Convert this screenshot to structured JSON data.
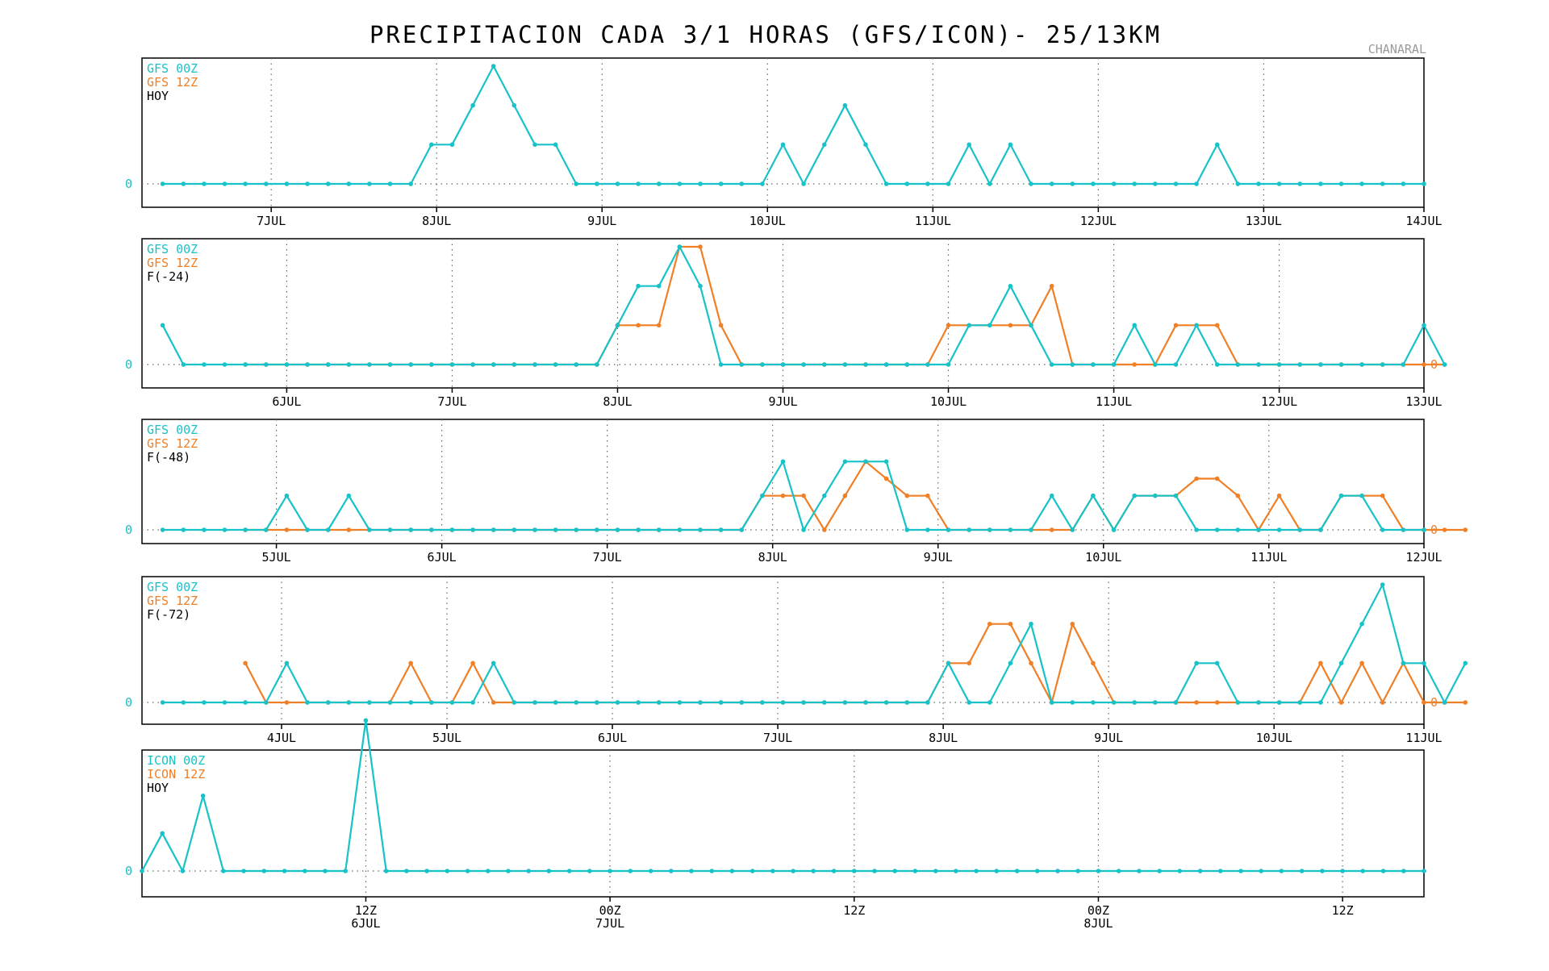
{
  "title": "PRECIPITACION CADA 3/1 HORAS (GFS/ICON)- 25/13KM",
  "location": "CHANARAL",
  "colors": {
    "series_00z": "#17c3c8",
    "series_12z": "#f07f26",
    "frame": "#000000",
    "text": "#000000"
  },
  "chart_data": [
    {
      "type": "line",
      "title": "",
      "legend": [
        "GFS 00Z",
        "GFS 12Z",
        "HOY"
      ],
      "legend_placement": "top-left",
      "x_range": [
        0,
        62
      ],
      "xticks": [
        {
          "x": 6.25,
          "label": "7JUL"
        },
        {
          "x": 14.25,
          "label": "8JUL"
        },
        {
          "x": 22.25,
          "label": "9JUL"
        },
        {
          "x": 30.25,
          "label": "10JUL"
        },
        {
          "x": 38.25,
          "label": "11JUL"
        },
        {
          "x": 46.25,
          "label": "12JUL"
        },
        {
          "x": 54.25,
          "label": "13JUL"
        },
        {
          "x": 62,
          "label": "14JUL"
        }
      ],
      "ylim": [
        0,
        3.0
      ],
      "yticks_left": [
        "0"
      ],
      "yticks_right": [],
      "series": [
        {
          "name": "GFS 00Z",
          "color": "#17c3c8",
          "x_start": 1,
          "values": [
            0,
            0,
            0,
            0,
            0,
            0,
            0,
            0,
            0,
            0,
            0,
            0,
            0,
            1,
            1,
            2,
            3,
            2,
            1,
            1,
            0,
            0,
            0,
            0,
            0,
            0,
            0,
            0,
            0,
            0,
            1,
            0,
            1,
            2,
            1,
            0,
            0,
            0,
            0,
            1,
            0,
            1,
            0,
            0,
            0,
            0,
            0,
            0,
            0,
            0,
            0,
            1,
            0,
            0,
            0,
            0,
            0,
            0,
            0,
            0,
            0,
            0
          ]
        }
      ]
    },
    {
      "type": "line",
      "title": "",
      "legend": [
        "GFS 00Z",
        "GFS 12Z",
        "F(-24)"
      ],
      "legend_placement": "top-left",
      "x_range": [
        0,
        62
      ],
      "xticks": [
        {
          "x": 7,
          "label": "6JUL"
        },
        {
          "x": 15,
          "label": "7JUL"
        },
        {
          "x": 23,
          "label": "8JUL"
        },
        {
          "x": 31,
          "label": "9JUL"
        },
        {
          "x": 39,
          "label": "10JUL"
        },
        {
          "x": 47,
          "label": "11JUL"
        },
        {
          "x": 55,
          "label": "12JUL"
        },
        {
          "x": 62,
          "label": "13JUL"
        }
      ],
      "ylim": [
        0,
        3.0
      ],
      "yticks_left": [
        "0"
      ],
      "yticks_right": [
        "0"
      ],
      "series": [
        {
          "name": "GFS 00Z",
          "color": "#17c3c8",
          "x_start": 1,
          "values": [
            1,
            0,
            0,
            0,
            0,
            0,
            0,
            0,
            0,
            0,
            0,
            0,
            0,
            0,
            0,
            0,
            0,
            0,
            0,
            0,
            0,
            0,
            1,
            2,
            2,
            3,
            2,
            0,
            0,
            0,
            0,
            0,
            0,
            0,
            0,
            0,
            0,
            0,
            0,
            1,
            1,
            2,
            1,
            0,
            0,
            0,
            0,
            1,
            0,
            0,
            1,
            0,
            0,
            0,
            0,
            0,
            0,
            0,
            0,
            0,
            0,
            1,
            0
          ]
        },
        {
          "name": "GFS 12Z",
          "color": "#f07f26",
          "x_start": 5,
          "values": [
            0,
            0,
            0,
            0,
            0,
            0,
            0,
            0,
            0,
            0,
            0,
            0,
            0,
            0,
            0,
            0,
            0,
            0,
            1,
            1,
            1,
            3,
            3,
            1,
            0,
            0,
            0,
            0,
            0,
            0,
            0,
            0,
            0,
            0,
            1,
            1,
            1,
            1,
            1,
            2,
            0,
            0,
            0,
            0,
            0,
            1,
            1,
            1,
            0,
            0,
            0,
            0,
            0,
            0,
            0,
            0,
            0,
            0,
            0
          ]
        }
      ]
    },
    {
      "type": "line",
      "title": "",
      "legend": [
        "GFS 00Z",
        "GFS 12Z",
        "F(-48)"
      ],
      "legend_placement": "top-left",
      "x_range": [
        0,
        62
      ],
      "xticks": [
        {
          "x": 6.5,
          "label": "5JUL"
        },
        {
          "x": 14.5,
          "label": "6JUL"
        },
        {
          "x": 22.5,
          "label": "7JUL"
        },
        {
          "x": 30.5,
          "label": "8JUL"
        },
        {
          "x": 38.5,
          "label": "9JUL"
        },
        {
          "x": 46.5,
          "label": "10JUL"
        },
        {
          "x": 54.5,
          "label": "11JUL"
        },
        {
          "x": 62,
          "label": "12JUL"
        }
      ],
      "ylim": [
        0,
        3.0
      ],
      "yticks_left": [
        "0"
      ],
      "yticks_right": [
        "0"
      ],
      "series": [
        {
          "name": "GFS 00Z",
          "color": "#17c3c8",
          "x_start": 1,
          "values": [
            0,
            0,
            0,
            0,
            0,
            0,
            1,
            0,
            0,
            1,
            0,
            0,
            0,
            0,
            0,
            0,
            0,
            0,
            0,
            0,
            0,
            0,
            0,
            0,
            0,
            0,
            0,
            0,
            0,
            1,
            2,
            0,
            1,
            2,
            2,
            2,
            0,
            0,
            0,
            0,
            0,
            0,
            0,
            1,
            0,
            1,
            0,
            1,
            1,
            1,
            0,
            0,
            0,
            0,
            0,
            0,
            0,
            1,
            1,
            0,
            0,
            0
          ]
        },
        {
          "name": "GFS 12Z",
          "color": "#f07f26",
          "x_start": 5,
          "values": [
            0,
            0,
            0,
            0,
            0,
            0,
            0,
            0,
            0,
            0,
            0,
            0,
            0,
            0,
            0,
            0,
            0,
            0,
            0,
            0,
            0,
            0,
            0,
            0,
            0,
            1,
            1,
            1,
            0,
            1,
            2,
            1.5,
            1,
            1,
            0,
            0,
            0,
            0,
            0,
            0,
            0,
            1,
            0,
            1,
            1,
            1,
            1.5,
            1.5,
            1,
            0,
            1,
            0,
            0,
            1,
            1,
            1,
            0,
            0,
            0,
            0
          ]
        }
      ]
    },
    {
      "type": "line",
      "title": "",
      "legend": [
        "GFS 00Z",
        "GFS 12Z",
        "F(-72)"
      ],
      "legend_placement": "top-left",
      "x_range": [
        0,
        62
      ],
      "xticks": [
        {
          "x": 6.75,
          "label": "4JUL"
        },
        {
          "x": 14.75,
          "label": "5JUL"
        },
        {
          "x": 22.75,
          "label": "6JUL"
        },
        {
          "x": 30.75,
          "label": "7JUL"
        },
        {
          "x": 38.75,
          "label": "8JUL"
        },
        {
          "x": 46.75,
          "label": "9JUL"
        },
        {
          "x": 54.75,
          "label": "10JUL"
        },
        {
          "x": 62,
          "label": "11JUL"
        }
      ],
      "ylim": [
        0,
        3.0
      ],
      "yticks_left": [
        "0"
      ],
      "yticks_right": [
        "0"
      ],
      "series": [
        {
          "name": "GFS 00Z",
          "color": "#17c3c8",
          "x_start": 1,
          "values": [
            0,
            0,
            0,
            0,
            0,
            0,
            1,
            0,
            0,
            0,
            0,
            0,
            0,
            0,
            0,
            0,
            1,
            0,
            0,
            0,
            0,
            0,
            0,
            0,
            0,
            0,
            0,
            0,
            0,
            0,
            0,
            0,
            0,
            0,
            0,
            0,
            0,
            0,
            1,
            0,
            0,
            1,
            2,
            0,
            0,
            0,
            0,
            0,
            0,
            0,
            1,
            1,
            0,
            0,
            0,
            0,
            0,
            1,
            2,
            3,
            1,
            1,
            0,
            1
          ]
        },
        {
          "name": "GFS 12Z",
          "color": "#f07f26",
          "x_start": 5,
          "values": [
            1,
            0,
            0,
            0,
            0,
            0,
            0,
            0,
            1,
            0,
            0,
            1,
            0,
            0,
            0,
            0,
            0,
            0,
            0,
            0,
            0,
            0,
            0,
            0,
            0,
            0,
            0,
            0,
            0,
            0,
            0,
            0,
            0,
            0,
            1,
            1,
            2,
            2,
            1,
            0,
            2,
            1,
            0,
            0,
            0,
            0,
            0,
            0,
            0,
            0,
            0,
            0,
            1,
            0,
            1,
            0,
            1,
            0,
            0,
            0
          ]
        }
      ]
    },
    {
      "type": "line",
      "title": "",
      "legend": [
        "ICON 00Z",
        "ICON 12Z",
        "HOY"
      ],
      "legend_placement": "top-left",
      "x_range": [
        0,
        63
      ],
      "xticks": [
        {
          "x": 11,
          "label": "12Z",
          "label2": "6JUL"
        },
        {
          "x": 23,
          "label": "00Z",
          "label2": "7JUL"
        },
        {
          "x": 35,
          "label": "12Z",
          "label2": ""
        },
        {
          "x": 47,
          "label": "00Z",
          "label2": "8JUL"
        },
        {
          "x": 59,
          "label": "12Z",
          "label2": ""
        }
      ],
      "ylim": [
        0,
        3.0
      ],
      "yticks_left": [
        "0"
      ],
      "yticks_right": [],
      "series": [
        {
          "name": "ICON 00Z",
          "color": "#17c3c8",
          "x_start": 0,
          "values": [
            0,
            1,
            0,
            2,
            0,
            0,
            0,
            0,
            0,
            0,
            0,
            4,
            0,
            0,
            0,
            0,
            0,
            0,
            0,
            0,
            0,
            0,
            0,
            0,
            0,
            0,
            0,
            0,
            0,
            0,
            0,
            0,
            0,
            0,
            0,
            0,
            0,
            0,
            0,
            0,
            0,
            0,
            0,
            0,
            0,
            0,
            0,
            0,
            0,
            0,
            0,
            0,
            0,
            0,
            0,
            0,
            0,
            0,
            0,
            0,
            0,
            0,
            0,
            0
          ]
        }
      ]
    }
  ]
}
